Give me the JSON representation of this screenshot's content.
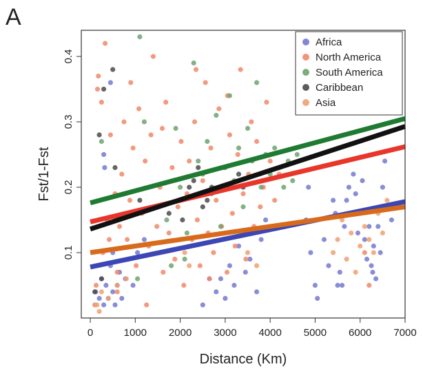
{
  "panel_label": "A",
  "chart_data": {
    "type": "scatter",
    "xlabel": "Distance (Km)",
    "ylabel": "Fst/1-Fst",
    "xlim": [
      -200,
      7000
    ],
    "ylim": [
      0.0,
      0.44
    ],
    "xticks": [
      0,
      1000,
      2000,
      3000,
      4000,
      5000,
      6000,
      7000
    ],
    "yticks": [
      0.1,
      0.2,
      0.3,
      0.4
    ],
    "ytick_labels": [
      "0.1",
      "0.2",
      "0.3",
      "0.4"
    ],
    "legend_position": "top-right",
    "series": [
      {
        "name": "Africa",
        "color": "#7479d0",
        "fit": {
          "x": [
            0,
            7000
          ],
          "y": [
            0.078,
            0.178
          ],
          "color": "#3c46b4"
        },
        "points": [
          [
            120,
            0.04
          ],
          [
            200,
            0.03
          ],
          [
            250,
            0.06
          ],
          [
            300,
            0.02
          ],
          [
            350,
            0.05
          ],
          [
            400,
            0.03
          ],
          [
            450,
            0.08
          ],
          [
            500,
            0.04
          ],
          [
            550,
            0.02
          ],
          [
            600,
            0.05
          ],
          [
            650,
            0.07
          ],
          [
            700,
            0.03
          ],
          [
            780,
            0.06
          ],
          [
            850,
            0.09
          ],
          [
            950,
            0.05
          ],
          [
            1050,
            0.1
          ],
          [
            1200,
            0.12
          ],
          [
            300,
            0.25
          ],
          [
            320,
            0.23
          ],
          [
            450,
            0.36
          ],
          [
            500,
            0.1
          ],
          [
            2800,
            0.04
          ],
          [
            2900,
            0.06
          ],
          [
            3000,
            0.03
          ],
          [
            3100,
            0.08
          ],
          [
            3200,
            0.05
          ],
          [
            3300,
            0.11
          ],
          [
            3450,
            0.07
          ],
          [
            3550,
            0.09
          ],
          [
            3700,
            0.04
          ],
          [
            3800,
            0.12
          ],
          [
            3900,
            0.15
          ],
          [
            2500,
            0.02
          ],
          [
            2650,
            0.06
          ],
          [
            4800,
            0.15
          ],
          [
            4850,
            0.2
          ],
          [
            4900,
            0.1
          ],
          [
            5000,
            0.05
          ],
          [
            5050,
            0.03
          ],
          [
            5200,
            0.12
          ],
          [
            5300,
            0.08
          ],
          [
            5400,
            0.18
          ],
          [
            5450,
            0.16
          ],
          [
            5550,
            0.07
          ],
          [
            5600,
            0.05
          ],
          [
            5650,
            0.14
          ],
          [
            5700,
            0.18
          ],
          [
            5750,
            0.2
          ],
          [
            5800,
            0.16
          ],
          [
            5850,
            0.22
          ],
          [
            5900,
            0.19
          ],
          [
            5950,
            0.13
          ],
          [
            6000,
            0.16
          ],
          [
            6050,
            0.21
          ],
          [
            6100,
            0.12
          ],
          [
            6150,
            0.09
          ],
          [
            6200,
            0.14
          ],
          [
            6250,
            0.08
          ],
          [
            6300,
            0.11
          ],
          [
            6350,
            0.06
          ],
          [
            6400,
            0.14
          ],
          [
            6450,
            0.1
          ],
          [
            6500,
            0.2
          ],
          [
            6550,
            0.24
          ],
          [
            6600,
            0.17
          ],
          [
            6700,
            0.15
          ],
          [
            5500,
            0.05
          ],
          [
            6280,
            0.07
          ]
        ]
      },
      {
        "name": "North America",
        "color": "#f0886a",
        "fit": {
          "x": [
            0,
            7000
          ],
          "y": [
            0.147,
            0.262
          ],
          "color": "#e8362a"
        },
        "points": [
          [
            100,
            0.02
          ],
          [
            130,
            0.05
          ],
          [
            160,
            0.35
          ],
          [
            180,
            0.37
          ],
          [
            250,
            0.33
          ],
          [
            280,
            0.1
          ],
          [
            330,
            0.42
          ],
          [
            380,
            0.15
          ],
          [
            420,
            0.12
          ],
          [
            550,
            0.19
          ],
          [
            600,
            0.07
          ],
          [
            650,
            0.14
          ],
          [
            700,
            0.22
          ],
          [
            750,
            0.3
          ],
          [
            820,
            0.12
          ],
          [
            880,
            0.18
          ],
          [
            950,
            0.26
          ],
          [
            1020,
            0.08
          ],
          [
            1080,
            0.32
          ],
          [
            1150,
            0.16
          ],
          [
            1220,
            0.24
          ],
          [
            1300,
            0.11
          ],
          [
            1350,
            0.28
          ],
          [
            1400,
            0.4
          ],
          [
            1480,
            0.14
          ],
          [
            1550,
            0.2
          ],
          [
            1620,
            0.07
          ],
          [
            1680,
            0.33
          ],
          [
            1750,
            0.13
          ],
          [
            1820,
            0.23
          ],
          [
            1880,
            0.09
          ],
          [
            1950,
            0.17
          ],
          [
            2020,
            0.27
          ],
          [
            2080,
            0.05
          ],
          [
            2150,
            0.19
          ],
          [
            2200,
            0.24
          ],
          [
            2260,
            0.12
          ],
          [
            2320,
            0.3
          ],
          [
            2380,
            0.15
          ],
          [
            2440,
            0.08
          ],
          [
            2500,
            0.21
          ],
          [
            2560,
            0.36
          ],
          [
            2620,
            0.13
          ],
          [
            2680,
            0.26
          ],
          [
            2740,
            0.1
          ],
          [
            2800,
            0.18
          ],
          [
            2860,
            0.32
          ],
          [
            2920,
            0.14
          ],
          [
            2980,
            0.23
          ],
          [
            3040,
            0.07
          ],
          [
            3100,
            0.28
          ],
          [
            3160,
            0.16
          ],
          [
            3220,
            0.11
          ],
          [
            3280,
            0.25
          ],
          [
            3340,
            0.38
          ],
          [
            3400,
            0.19
          ],
          [
            3460,
            0.09
          ],
          [
            3520,
            0.22
          ],
          [
            3580,
            0.3
          ],
          [
            3640,
            0.14
          ],
          [
            3700,
            0.27
          ],
          [
            3780,
            0.17
          ],
          [
            3850,
            0.2
          ],
          [
            3920,
            0.33
          ],
          [
            4000,
            0.24
          ],
          [
            4100,
            0.18
          ],
          [
            4200,
            0.22
          ],
          [
            6100,
            0.1
          ],
          [
            6200,
            0.05
          ],
          [
            1600,
            0.29
          ],
          [
            900,
            0.36
          ],
          [
            2350,
            0.38
          ],
          [
            2650,
            0.06
          ],
          [
            3050,
            0.34
          ],
          [
            1250,
            0.02
          ],
          [
            450,
            0.28
          ],
          [
            600,
            0.04
          ]
        ]
      },
      {
        "name": "South America",
        "color": "#6fa36f",
        "fit": {
          "x": [
            0,
            7000
          ],
          "y": [
            0.176,
            0.305
          ],
          "color": "#1f7a32"
        },
        "points": [
          [
            1100,
            0.43
          ],
          [
            1200,
            0.3
          ],
          [
            1700,
            0.15
          ],
          [
            1900,
            0.29
          ],
          [
            2000,
            0.2
          ],
          [
            2150,
            0.13
          ],
          [
            2300,
            0.39
          ],
          [
            2400,
            0.24
          ],
          [
            2500,
            0.22
          ],
          [
            2600,
            0.27
          ],
          [
            2700,
            0.19
          ],
          [
            2800,
            0.31
          ],
          [
            2900,
            0.14
          ],
          [
            3000,
            0.23
          ],
          [
            3100,
            0.34
          ],
          [
            3200,
            0.21
          ],
          [
            3300,
            0.26
          ],
          [
            3400,
            0.17
          ],
          [
            3500,
            0.29
          ],
          [
            3600,
            0.24
          ],
          [
            3700,
            0.36
          ],
          [
            3800,
            0.2
          ],
          [
            3900,
            0.25
          ],
          [
            4000,
            0.22
          ],
          [
            4100,
            0.26
          ],
          [
            4200,
            0.23
          ],
          [
            4300,
            0.2
          ],
          [
            4400,
            0.24
          ],
          [
            4500,
            0.21
          ],
          [
            4600,
            0.25
          ],
          [
            1800,
            0.08
          ],
          [
            2100,
            0.09
          ],
          [
            1050,
            0.06
          ],
          [
            250,
            0.27
          ]
        ]
      },
      {
        "name": "Caribbean",
        "color": "#4a4a4a",
        "fit": {
          "x": [
            0,
            7000
          ],
          "y": [
            0.136,
            0.293
          ],
          "color": "#111111"
        },
        "points": [
          [
            200,
            0.28
          ],
          [
            250,
            0.06
          ],
          [
            300,
            0.35
          ],
          [
            550,
            0.23
          ],
          [
            500,
            0.38
          ],
          [
            1100,
            0.18
          ],
          [
            1750,
            0.16
          ],
          [
            2200,
            0.2
          ],
          [
            2300,
            0.21
          ],
          [
            2400,
            0.23
          ],
          [
            2500,
            0.17
          ],
          [
            2600,
            0.18
          ],
          [
            2700,
            0.2
          ],
          [
            3300,
            0.22
          ],
          [
            3400,
            0.2
          ],
          [
            100,
            0.04
          ],
          [
            2050,
            0.15
          ]
        ]
      },
      {
        "name": "Asia",
        "color": "#f0a070",
        "fit": {
          "x": [
            0,
            7000
          ],
          "y": [
            0.1,
            0.17
          ],
          "color": "#d86a1c"
        },
        "points": [
          [
            150,
            0.02
          ],
          [
            200,
            0.01
          ],
          [
            250,
            0.04
          ],
          [
            400,
            0.03
          ],
          [
            600,
            0.05
          ],
          [
            800,
            0.06
          ],
          [
            2000,
            0.12
          ],
          [
            2100,
            0.1
          ],
          [
            2200,
            0.08
          ],
          [
            3500,
            0.1
          ],
          [
            3700,
            0.08
          ],
          [
            5400,
            0.1
          ],
          [
            5500,
            0.12
          ],
          [
            5600,
            0.15
          ],
          [
            5700,
            0.09
          ],
          [
            5800,
            0.13
          ],
          [
            5900,
            0.07
          ],
          [
            6000,
            0.11
          ],
          [
            6100,
            0.14
          ],
          [
            6200,
            0.12
          ],
          [
            6300,
            0.1
          ],
          [
            6400,
            0.16
          ],
          [
            6500,
            0.13
          ],
          [
            6600,
            0.18
          ]
        ]
      }
    ]
  }
}
